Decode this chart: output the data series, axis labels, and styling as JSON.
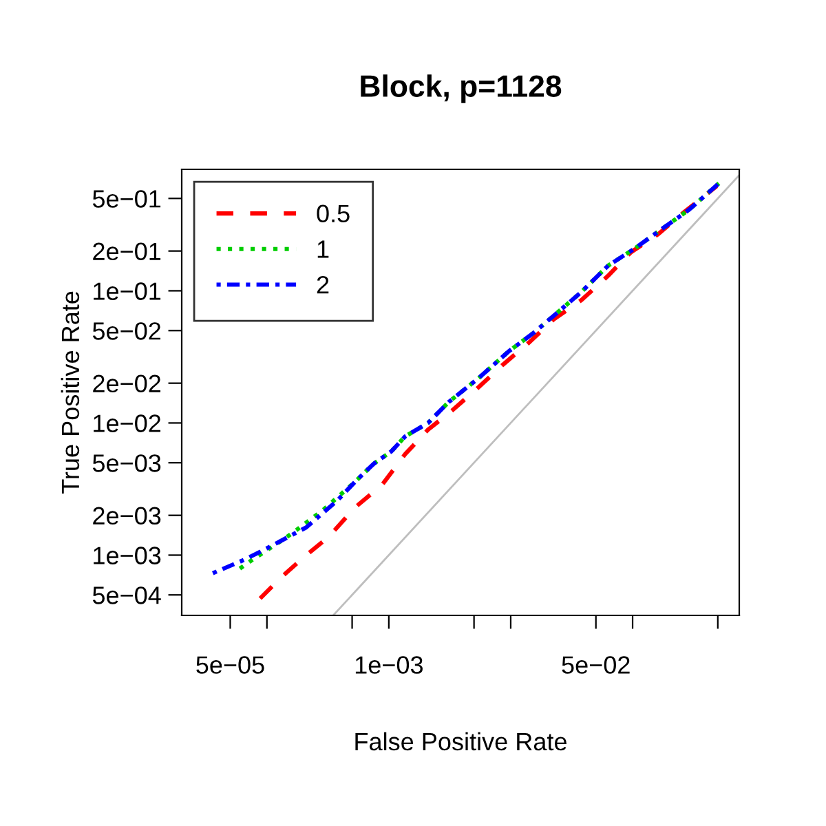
{
  "chart_data": {
    "type": "line",
    "title": "Block, p=1128",
    "xlabel": "False Positive Rate",
    "ylabel": "True Positive Rate",
    "log": "xy",
    "xlim": [
      2e-05,
      0.75
    ],
    "ylim": [
      0.00035,
      0.83
    ],
    "xticks": [
      {
        "value": 5e-05,
        "label": "5e−05"
      },
      {
        "value": 0.0001,
        "label": null
      },
      {
        "value": 0.0005,
        "label": null
      },
      {
        "value": 0.001,
        "label": "1e−03"
      },
      {
        "value": 0.005,
        "label": null
      },
      {
        "value": 0.01,
        "label": null
      },
      {
        "value": 0.05,
        "label": "5e−02"
      },
      {
        "value": 0.1,
        "label": null
      },
      {
        "value": 0.5,
        "label": null
      }
    ],
    "yticks": [
      {
        "value": 0.0005,
        "label": "5e−04"
      },
      {
        "value": 0.001,
        "label": "1e−03"
      },
      {
        "value": 0.002,
        "label": "2e−03"
      },
      {
        "value": 0.005,
        "label": "5e−03"
      },
      {
        "value": 0.01,
        "label": "1e−02"
      },
      {
        "value": 0.02,
        "label": "2e−02"
      },
      {
        "value": 0.05,
        "label": "5e−02"
      },
      {
        "value": 0.1,
        "label": "1e−01"
      },
      {
        "value": 0.2,
        "label": "2e−01"
      },
      {
        "value": 0.5,
        "label": "5e−01"
      }
    ],
    "grid": false,
    "legend": "top left",
    "series": [
      {
        "name": "0.5",
        "color": "#ff0000",
        "line_style": "dashed",
        "x": [
          8.8e-05,
          0.000129,
          0.00021,
          0.00032,
          0.00053,
          0.00088,
          0.00136,
          0.0021,
          0.0033,
          0.0053,
          0.0086,
          0.0143,
          0.0226,
          0.038,
          0.063,
          0.097,
          0.162,
          0.27,
          0.49
        ],
        "values": [
          0.00047,
          0.00067,
          0.001,
          0.00137,
          0.0023,
          0.0034,
          0.0058,
          0.0089,
          0.0124,
          0.0182,
          0.0275,
          0.041,
          0.061,
          0.085,
          0.13,
          0.196,
          0.268,
          0.4,
          0.62
        ]
      },
      {
        "name": "1",
        "color": "#00cd00",
        "line_style": "dotted",
        "x": [
          6e-05,
          7.7e-05,
          0.000136,
          0.000175,
          0.00029,
          0.00053,
          0.00075,
          0.00105,
          0.00136,
          0.0021,
          0.0031,
          0.0055,
          0.0097,
          0.0154,
          0.024,
          0.038,
          0.063,
          0.105,
          0.175,
          0.29,
          0.51
        ],
        "values": [
          0.00079,
          0.00093,
          0.00131,
          0.00155,
          0.0022,
          0.0036,
          0.0049,
          0.0061,
          0.0079,
          0.01,
          0.0144,
          0.022,
          0.035,
          0.048,
          0.068,
          0.098,
          0.155,
          0.21,
          0.295,
          0.41,
          0.65
        ]
      },
      {
        "name": "2",
        "color": "#0000ff",
        "line_style": "dashdot",
        "x": [
          3.6e-05,
          6.3e-05,
          9.2e-05,
          0.000136,
          0.00021,
          0.00038,
          0.00053,
          0.00075,
          0.00105,
          0.00136,
          0.0021,
          0.0031,
          0.0055,
          0.0097,
          0.0154,
          0.024,
          0.038,
          0.063,
          0.105,
          0.175,
          0.29,
          0.51
        ],
        "values": [
          0.00073,
          0.00091,
          0.00108,
          0.00131,
          0.00162,
          0.0026,
          0.0036,
          0.0049,
          0.0061,
          0.0079,
          0.01,
          0.0144,
          0.022,
          0.035,
          0.048,
          0.068,
          0.098,
          0.155,
          0.21,
          0.295,
          0.41,
          0.65
        ]
      },
      {
        "color": "#bebebe",
        "line_style": "solid",
        "x": [
          0.00035,
          0.75
        ],
        "values": [
          0.00035,
          0.75
        ]
      }
    ]
  }
}
